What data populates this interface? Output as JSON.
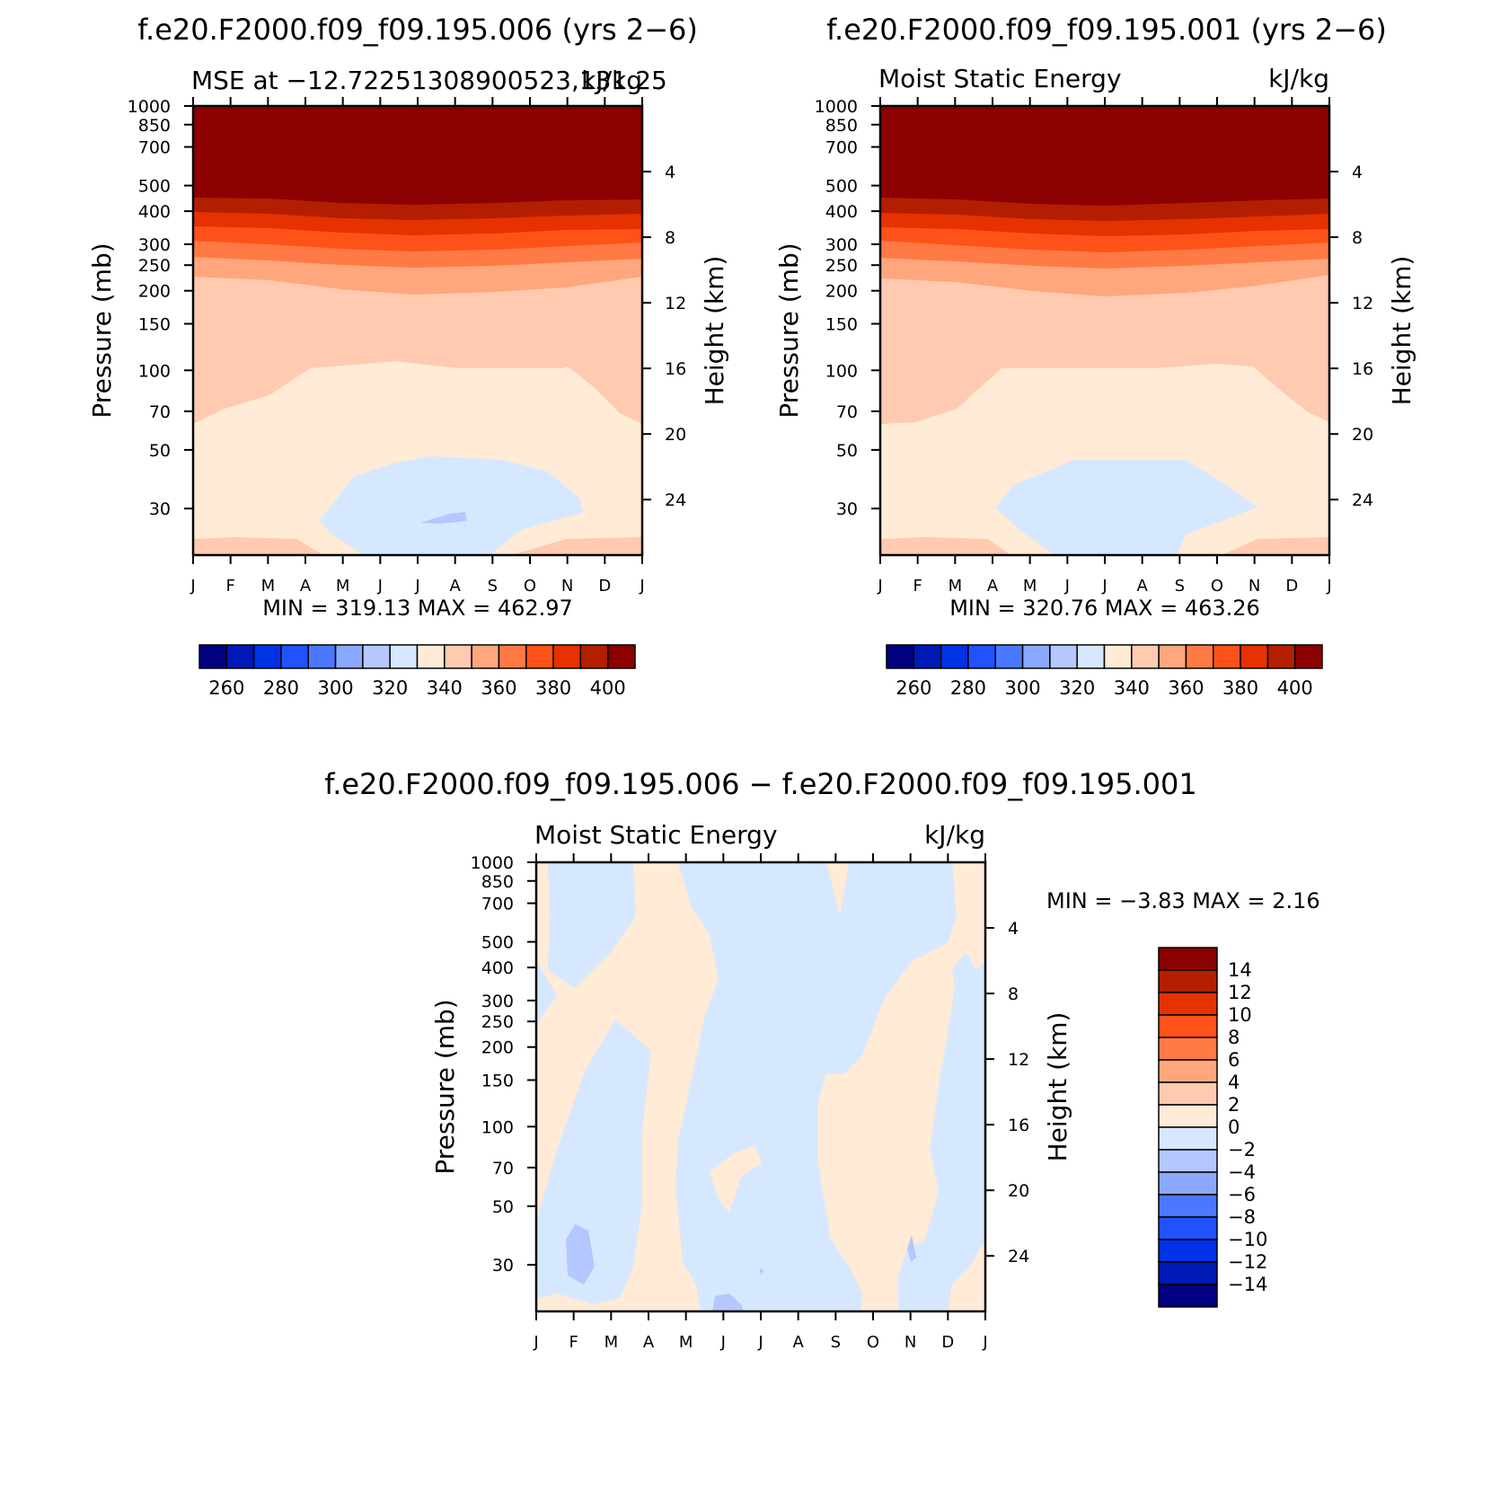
{
  "colors": {
    "abs_scale": [
      "#000080",
      "#0019b4",
      "#0032e6",
      "#2152ff",
      "#4a78ff",
      "#8aa8ff",
      "#b4c8ff",
      "#d6e8ff",
      "#ffebd6",
      "#ffcab0",
      "#ffa67c",
      "#ff7a45",
      "#ff5219",
      "#e63200",
      "#b41e00",
      "#8b0000"
    ],
    "diff_scale": [
      "#000080",
      "#0019b4",
      "#0032e6",
      "#2152ff",
      "#4a78ff",
      "#8aa8ff",
      "#b4c8ff",
      "#d6e8ff",
      "#ffebd6",
      "#ffcab0",
      "#ffa67c",
      "#ff7a45",
      "#ff5219",
      "#e63200",
      "#b41e00",
      "#8b0000"
    ]
  },
  "chart_data": [
    {
      "type": "heatmap",
      "panel_title": "f.e20.F2000.f09_f09.195.006 (yrs 2−6)",
      "left_title": "MSE at −12.72251308900523,131.25",
      "right_title": "kJ/kg",
      "ylabel": "Pressure (mb)",
      "ylabel_right": "Height (km)",
      "x_ticks": [
        "J",
        "F",
        "M",
        "A",
        "M",
        "J",
        "J",
        "A",
        "S",
        "O",
        "N",
        "D",
        "J"
      ],
      "y_ticks": [
        "30",
        "50",
        "70",
        "100",
        "150",
        "200",
        "250",
        "300",
        "400",
        "500",
        "700",
        "850",
        "1000"
      ],
      "y_ticks_right": [
        "24",
        "20",
        "16",
        "12",
        "8",
        "4"
      ],
      "y_scale": "log-pressure",
      "ylim": [
        1000,
        20
      ],
      "stats_text": "MIN = 319.13 MAX = 462.97",
      "min": 319.13,
      "max": 462.97,
      "colorbar": {
        "orientation": "horizontal",
        "labels": [
          "260",
          "280",
          "300",
          "320",
          "340",
          "360",
          "380",
          "400"
        ],
        "levels": [
          250,
          260,
          270,
          280,
          290,
          300,
          310,
          320,
          330,
          340,
          350,
          360,
          370,
          380,
          390,
          400
        ]
      }
    },
    {
      "type": "heatmap",
      "panel_title": "f.e20.F2000.f09_f09.195.001 (yrs 2−6)",
      "left_title": "Moist Static Energy",
      "right_title": "kJ/kg",
      "ylabel": "Pressure (mb)",
      "ylabel_right": "Height (km)",
      "x_ticks": [
        "J",
        "F",
        "M",
        "A",
        "M",
        "J",
        "J",
        "A",
        "S",
        "O",
        "N",
        "D",
        "J"
      ],
      "y_ticks": [
        "30",
        "50",
        "70",
        "100",
        "150",
        "200",
        "250",
        "300",
        "400",
        "500",
        "700",
        "850",
        "1000"
      ],
      "y_ticks_right": [
        "24",
        "20",
        "16",
        "12",
        "8",
        "4"
      ],
      "y_scale": "log-pressure",
      "ylim": [
        1000,
        20
      ],
      "stats_text": "MIN = 320.76 MAX = 463.26",
      "min": 320.76,
      "max": 463.26,
      "colorbar": {
        "orientation": "horizontal",
        "labels": [
          "260",
          "280",
          "300",
          "320",
          "340",
          "360",
          "380",
          "400"
        ],
        "levels": [
          250,
          260,
          270,
          280,
          290,
          300,
          310,
          320,
          330,
          340,
          350,
          360,
          370,
          380,
          390,
          400
        ]
      }
    },
    {
      "type": "heatmap",
      "panel_title": "f.e20.F2000.f09_f09.195.006 − f.e20.F2000.f09_f09.195.001",
      "left_title": "Moist Static Energy",
      "right_title": "kJ/kg",
      "ylabel": "Pressure (mb)",
      "ylabel_right": "Height (km)",
      "x_ticks": [
        "J",
        "F",
        "M",
        "A",
        "M",
        "J",
        "J",
        "A",
        "S",
        "O",
        "N",
        "D",
        "J"
      ],
      "y_ticks": [
        "30",
        "50",
        "70",
        "100",
        "150",
        "200",
        "250",
        "300",
        "400",
        "500",
        "700",
        "850",
        "1000"
      ],
      "y_ticks_right": [
        "24",
        "20",
        "16",
        "12",
        "8",
        "4"
      ],
      "y_scale": "log-pressure",
      "ylim": [
        1000,
        20
      ],
      "stats_text": "MIN = −3.83 MAX = 2.16",
      "min": -3.83,
      "max": 2.16,
      "colorbar": {
        "orientation": "vertical",
        "labels": [
          "14",
          "12",
          "10",
          "8",
          "6",
          "4",
          "2",
          "0",
          "−2",
          "−4",
          "−6",
          "−8",
          "−10",
          "−12",
          "−14"
        ],
        "levels": [
          -14,
          -12,
          -10,
          -8,
          -6,
          -4,
          -2,
          0,
          2,
          4,
          6,
          8,
          10,
          12,
          14
        ]
      }
    }
  ]
}
